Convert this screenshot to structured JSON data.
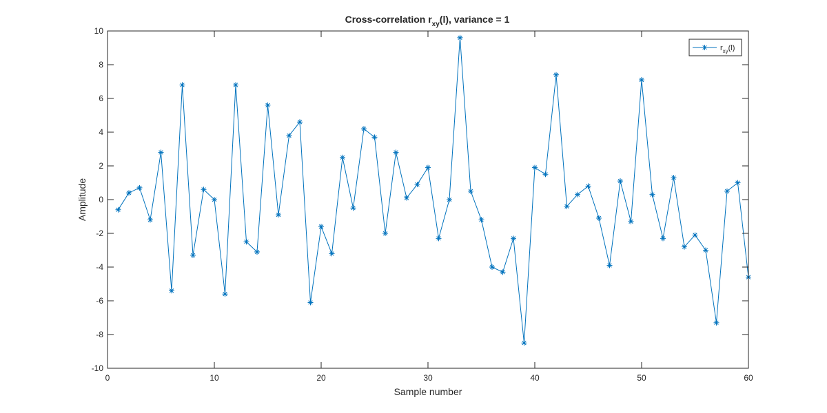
{
  "chart_data": {
    "type": "line",
    "title": {
      "main": "Cross-correlation r",
      "sub": "xy",
      "rest": "(l), variance = 1"
    },
    "xlabel": "Sample number",
    "ylabel": "Amplitude",
    "xlim": [
      0,
      60
    ],
    "ylim": [
      -10,
      10
    ],
    "xticks": [
      0,
      10,
      20,
      30,
      40,
      50,
      60
    ],
    "yticks": [
      -10,
      -8,
      -6,
      -4,
      -2,
      0,
      2,
      4,
      6,
      8,
      10
    ],
    "grid": false,
    "legend_position": "top-right",
    "series": [
      {
        "name": {
          "main": "r",
          "sub": "xy",
          "rest": "(l)"
        },
        "color": "#0072BD",
        "marker": "asterisk",
        "x": [
          1,
          2,
          3,
          4,
          5,
          6,
          7,
          8,
          9,
          10,
          11,
          12,
          13,
          14,
          15,
          16,
          17,
          18,
          19,
          20,
          21,
          22,
          23,
          24,
          25,
          26,
          27,
          28,
          29,
          30,
          31,
          32,
          33,
          34,
          35,
          36,
          37,
          38,
          39,
          40,
          41,
          42,
          43,
          44,
          45,
          46,
          47,
          48,
          49,
          50,
          51,
          52,
          53,
          54,
          55,
          56,
          57,
          58,
          59,
          60
        ],
        "y": [
          -0.6,
          0.4,
          0.7,
          -1.2,
          2.8,
          -5.4,
          6.8,
          -3.3,
          0.6,
          0.0,
          -5.6,
          6.8,
          -2.5,
          -3.1,
          5.6,
          -0.9,
          3.8,
          4.6,
          -6.1,
          -1.6,
          -3.2,
          2.5,
          -0.5,
          4.2,
          3.7,
          -2.0,
          2.8,
          0.1,
          0.9,
          1.9,
          -2.3,
          0.0,
          9.6,
          0.5,
          -1.2,
          -4.0,
          -4.3,
          -2.3,
          -8.5,
          1.9,
          1.5,
          7.4,
          -0.4,
          0.3,
          0.8,
          -1.1,
          -3.9,
          1.1,
          -1.3,
          7.1,
          0.3,
          -2.3,
          1.3,
          -2.8,
          -2.1,
          -3.0,
          -7.3,
          0.5,
          1.0,
          -4.6
        ]
      }
    ]
  }
}
